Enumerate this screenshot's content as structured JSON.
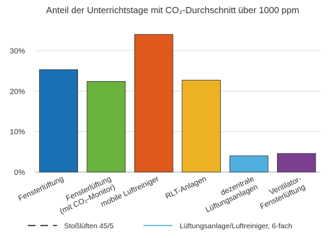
{
  "chart_data": {
    "type": "bar",
    "title": "Anteil der Unterrichtstage mit CO₂-Durchschnitt über 1000 ppm",
    "categories": [
      [
        "Fensterlüftung"
      ],
      [
        "Fensterlüftung",
        "(mit CO₂-Monitor)"
      ],
      [
        "mobile Luftreiniger"
      ],
      [
        "RLT-Anlagen"
      ],
      [
        "dezentrale",
        "Lüftungsanlagen"
      ],
      [
        "Ventilator-",
        "Fensterlüftung"
      ]
    ],
    "values": [
      25.3,
      22.4,
      34.0,
      22.7,
      4.0,
      4.6
    ],
    "colors": [
      "#1b6fb3",
      "#6ab23e",
      "#e0591c",
      "#edb324",
      "#4fb0e0",
      "#7c3f8f"
    ],
    "yticks": [
      0,
      10,
      20,
      30
    ],
    "ytick_labels": [
      "0%",
      "10%",
      "20%",
      "30%"
    ],
    "ylim": [
      0,
      36
    ],
    "xlabel": "",
    "ylabel": "",
    "grid": true,
    "legend": {
      "placement": "bottom",
      "entries": [
        {
          "name": "Stoßlüften 45/5",
          "style": "dashed",
          "color": "#555555"
        },
        {
          "name": "Lüftungsanlage/Luftreiniger, 6-fach",
          "style": "solid",
          "color": "#7ec3e8"
        }
      ]
    }
  }
}
